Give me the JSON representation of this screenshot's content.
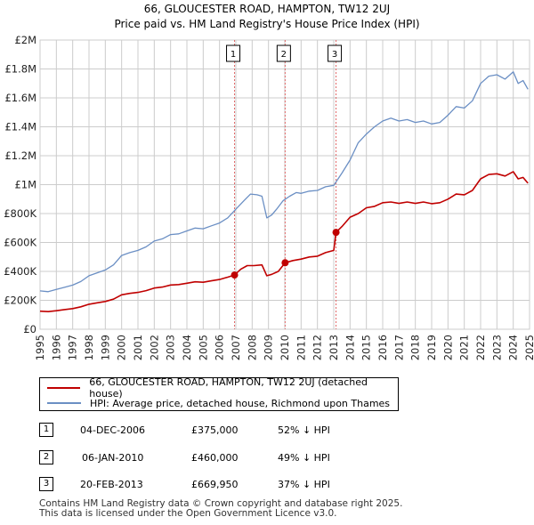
{
  "chart_data": {
    "type": "line",
    "title": "66, GLOUCESTER ROAD, HAMPTON, TW12 2UJ",
    "subtitle": "Price paid vs. HM Land Registry's House Price Index (HPI)",
    "xlim": [
      1995,
      2025
    ],
    "ylim": [
      0,
      2000000
    ],
    "ytick_values": [
      0,
      200000,
      400000,
      600000,
      800000,
      1000000,
      1200000,
      1400000,
      1600000,
      1800000,
      2000000
    ],
    "ytick_labels": [
      "£0",
      "£200K",
      "£400K",
      "£600K",
      "£800K",
      "£1M",
      "£1.2M",
      "£1.4M",
      "£1.6M",
      "£1.8M",
      "£2M"
    ],
    "xtick_labels": [
      "1995",
      "1996",
      "1997",
      "1998",
      "1999",
      "2000",
      "2001",
      "2002",
      "2003",
      "2004",
      "2005",
      "2006",
      "2007",
      "2008",
      "2009",
      "2010",
      "2011",
      "2012",
      "2013",
      "2014",
      "2015",
      "2016",
      "2017",
      "2018",
      "2019",
      "2020",
      "2021",
      "2022",
      "2023",
      "2024",
      "2025"
    ],
    "grid": true,
    "series": [
      {
        "name": "HPI: Average price, detached house, Richmond upon Thames",
        "color": "#6b8fc4",
        "x": [
          1995.0,
          1995.5,
          1996.0,
          1996.5,
          1997.0,
          1997.5,
          1998.0,
          1998.5,
          1999.0,
          1999.5,
          2000.0,
          2000.5,
          2001.0,
          2001.5,
          2002.0,
          2002.5,
          2003.0,
          2003.5,
          2004.0,
          2004.5,
          2005.0,
          2005.5,
          2006.0,
          2006.5,
          2007.0,
          2007.5,
          2007.9,
          2008.3,
          2008.6,
          2008.9,
          2009.2,
          2009.5,
          2009.9,
          2010.3,
          2010.7,
          2011.0,
          2011.5,
          2012.0,
          2012.5,
          2013.0,
          2013.5,
          2014.0,
          2014.5,
          2015.0,
          2015.5,
          2016.0,
          2016.5,
          2017.0,
          2017.5,
          2018.0,
          2018.5,
          2019.0,
          2019.5,
          2020.0,
          2020.5,
          2021.0,
          2021.5,
          2022.0,
          2022.5,
          2023.0,
          2023.5,
          2024.0,
          2024.3,
          2024.6,
          2024.9
        ],
        "values": [
          265000,
          260000,
          275000,
          290000,
          305000,
          330000,
          370000,
          390000,
          410000,
          445000,
          510000,
          530000,
          545000,
          570000,
          610000,
          625000,
          655000,
          660000,
          680000,
          700000,
          695000,
          715000,
          735000,
          770000,
          830000,
          890000,
          935000,
          930000,
          920000,
          770000,
          790000,
          830000,
          890000,
          920000,
          945000,
          940000,
          955000,
          960000,
          985000,
          995000,
          1080000,
          1170000,
          1290000,
          1350000,
          1400000,
          1440000,
          1460000,
          1440000,
          1450000,
          1430000,
          1440000,
          1420000,
          1430000,
          1480000,
          1540000,
          1530000,
          1580000,
          1700000,
          1750000,
          1760000,
          1730000,
          1780000,
          1700000,
          1720000,
          1660000
        ]
      },
      {
        "name": "66, GLOUCESTER ROAD, HAMPTON, TW12 2UJ (detached house)",
        "color": "#c00000",
        "x": [
          1995.0,
          1995.5,
          1996.0,
          1996.5,
          1997.0,
          1997.5,
          1998.0,
          1998.5,
          1999.0,
          1999.5,
          2000.0,
          2000.5,
          2001.0,
          2001.5,
          2002.0,
          2002.5,
          2003.0,
          2003.5,
          2004.0,
          2004.5,
          2005.0,
          2005.5,
          2006.0,
          2006.5,
          2006.92,
          2007.3,
          2007.7,
          2008.1,
          2008.6,
          2008.9,
          2009.2,
          2009.6,
          2010.02,
          2010.5,
          2011.0,
          2011.5,
          2012.0,
          2012.5,
          2013.0,
          2013.14,
          2013.5,
          2014.0,
          2014.5,
          2015.0,
          2015.5,
          2016.0,
          2016.5,
          2017.0,
          2017.5,
          2018.0,
          2018.5,
          2019.0,
          2019.5,
          2020.0,
          2020.5,
          2021.0,
          2021.5,
          2022.0,
          2022.5,
          2023.0,
          2023.5,
          2024.0,
          2024.3,
          2024.6,
          2024.9
        ],
        "values": [
          125000,
          122000,
          128000,
          136000,
          143000,
          155000,
          173000,
          183000,
          192000,
          208000,
          238000,
          248000,
          255000,
          267000,
          285000,
          292000,
          306000,
          309000,
          318000,
          328000,
          325000,
          335000,
          344000,
          360000,
          375000,
          415000,
          440000,
          440000,
          445000,
          370000,
          380000,
          400000,
          460000,
          475000,
          485000,
          500000,
          505000,
          530000,
          545000,
          669950,
          710000,
          775000,
          800000,
          840000,
          850000,
          875000,
          880000,
          870000,
          880000,
          870000,
          880000,
          868000,
          875000,
          900000,
          935000,
          930000,
          960000,
          1040000,
          1070000,
          1075000,
          1060000,
          1090000,
          1040000,
          1050000,
          1010000
        ]
      }
    ],
    "sales": [
      {
        "id": "1",
        "x": 2006.92,
        "value": 375000
      },
      {
        "id": "2",
        "x": 2010.02,
        "value": 460000
      },
      {
        "id": "3",
        "x": 2013.14,
        "value": 669950
      }
    ]
  },
  "legend": {
    "property_label": "66, GLOUCESTER ROAD, HAMPTON, TW12 2UJ (detached house)",
    "hpi_label": "HPI: Average price, detached house, Richmond upon Thames",
    "property_color": "#c00000",
    "hpi_color": "#6b8fc4"
  },
  "transactions": [
    {
      "id": "1",
      "date": "04-DEC-2006",
      "price": "£375,000",
      "hpi": "52% ↓ HPI"
    },
    {
      "id": "2",
      "date": "06-JAN-2010",
      "price": "£460,000",
      "hpi": "49% ↓ HPI"
    },
    {
      "id": "3",
      "date": "20-FEB-2013",
      "price": "£669,950",
      "hpi": "37% ↓ HPI"
    }
  ],
  "footer": {
    "line1": "Contains HM Land Registry data © Crown copyright and database right 2025.",
    "line2": "This data is licensed under the Open Government Licence v3.0."
  }
}
